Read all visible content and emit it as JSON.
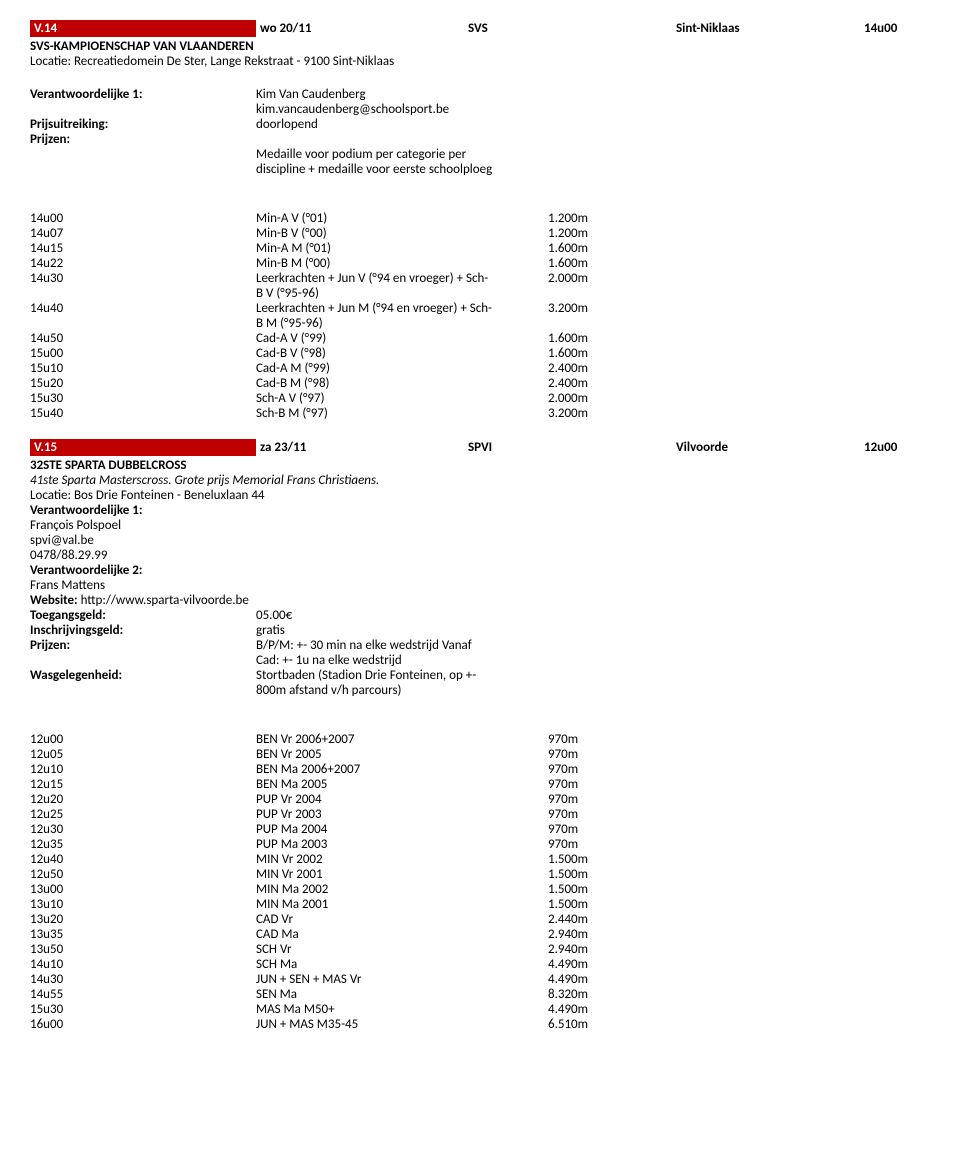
{
  "event1": {
    "header": {
      "code": "V.14",
      "date": "wo 20/11",
      "club": "SVS",
      "location": "Sint-Niklaas",
      "start_time": "14u00"
    },
    "title": "SVS-KAMPIOENSCHAP VAN VLAANDEREN",
    "locatie": "Locatie: Recreatiedomein De Ster, Lange Rekstraat - 9100 Sint-Niklaas",
    "resp1_label": "Verantwoordelijke 1:",
    "resp1_name": "Kim Van Caudenberg",
    "resp1_email": "kim.vancaudenberg@schoolsport.be",
    "prijsuit_label": "Prijsuitreiking:",
    "prijsuit_val": "doorlopend",
    "prijzen_label": "Prijzen:",
    "prijzen_line1": "Medaille voor podium per categorie per",
    "prijzen_line2": "discipline + medaille voor eerste schoolploeg",
    "schedule": [
      {
        "t": "14u00",
        "c": "Min-A V (°01)",
        "d": "1.200m"
      },
      {
        "t": "14u07",
        "c": "Min-B V (°00)",
        "d": "1.200m"
      },
      {
        "t": "14u15",
        "c": "Min-A M (°01)",
        "d": "1.600m"
      },
      {
        "t": "14u22",
        "c": "Min-B M (°00)",
        "d": "1.600m"
      },
      {
        "t": "14u30",
        "c": "Leerkrachten + Jun V (°94 en vroeger) + Sch-",
        "d": "2.000m"
      },
      {
        "t": "",
        "c": "B V (°95-96)",
        "d": ""
      },
      {
        "t": "14u40",
        "c": "Leerkrachten + Jun M (°94 en vroeger) + Sch-",
        "d": "3.200m"
      },
      {
        "t": "",
        "c": "B M (°95-96)",
        "d": ""
      },
      {
        "t": "14u50",
        "c": "Cad-A V (°99)",
        "d": "1.600m"
      },
      {
        "t": "15u00",
        "c": "Cad-B V (°98)",
        "d": "1.600m"
      },
      {
        "t": "15u10",
        "c": "Cad-A M (°99)",
        "d": "2.400m"
      },
      {
        "t": "15u20",
        "c": "Cad-B M (°98)",
        "d": "2.400m"
      },
      {
        "t": "15u30",
        "c": "Sch-A V (°97)",
        "d": "2.000m"
      },
      {
        "t": "15u40",
        "c": "Sch-B M (°97)",
        "d": "3.200m"
      }
    ]
  },
  "event2": {
    "header": {
      "code": "V.15",
      "date": "za 23/11",
      "club": "SPVI",
      "location": "Vilvoorde",
      "start_time": "12u00"
    },
    "title": "32STE SPARTA DUBBELCROSS",
    "subtitle": "41ste Sparta Masterscross. Grote prijs Memorial Frans Christiaens.",
    "locatie": "Locatie: Bos Drie Fonteinen - Beneluxlaan 44",
    "resp1_label": "Verantwoordelijke 1:",
    "resp1_name": "François Polspoel",
    "resp1_email": "spvi@val.be",
    "resp1_phone": "0478/88.29.99",
    "resp2_label": "Verantwoordelijke 2:",
    "resp2_name": "Frans Mattens",
    "website_label": "Website: ",
    "website_url": "http://www.sparta-vilvoorde.be",
    "toegang_label": "Toegangsgeld:",
    "toegang_val": "05.00€",
    "inschrijving_label": "Inschrijvingsgeld:",
    "inschrijving_val": "gratis",
    "prijzen_label": "Prijzen:",
    "prijzen_line1": "B/P/M: +- 30 min na elke wedstrijd Vanaf",
    "prijzen_line2": "Cad: +- 1u na elke wedstrijd",
    "wasg_label": "Wasgelegenheid:",
    "wasg_line1": "Stortbaden (Stadion Drie Fonteinen, op +-",
    "wasg_line2": "800m afstand v/h parcours)",
    "schedule": [
      {
        "t": "12u00",
        "c": "BEN Vr 2006+2007",
        "d": "970m"
      },
      {
        "t": "12u05",
        "c": "BEN Vr 2005",
        "d": "970m"
      },
      {
        "t": "12u10",
        "c": "BEN Ma 2006+2007",
        "d": "970m"
      },
      {
        "t": "12u15",
        "c": "BEN Ma 2005",
        "d": "970m"
      },
      {
        "t": "12u20",
        "c": "PUP Vr 2004",
        "d": "970m"
      },
      {
        "t": "12u25",
        "c": "PUP Vr 2003",
        "d": "970m"
      },
      {
        "t": "12u30",
        "c": "PUP Ma 2004",
        "d": "970m"
      },
      {
        "t": "12u35",
        "c": "PUP Ma 2003",
        "d": "970m"
      },
      {
        "t": "12u40",
        "c": "MIN Vr 2002",
        "d": "1.500m"
      },
      {
        "t": "12u50",
        "c": "MIN Vr 2001",
        "d": "1.500m"
      },
      {
        "t": "13u00",
        "c": "MIN Ma 2002",
        "d": "1.500m"
      },
      {
        "t": "13u10",
        "c": "MIN Ma 2001",
        "d": "1.500m"
      },
      {
        "t": "13u20",
        "c": "CAD Vr",
        "d": "2.440m"
      },
      {
        "t": "13u35",
        "c": "CAD Ma",
        "d": "2.940m"
      },
      {
        "t": "13u50",
        "c": "SCH Vr",
        "d": "2.940m"
      },
      {
        "t": "14u10",
        "c": "SCH Ma",
        "d": "4.490m"
      },
      {
        "t": "14u30",
        "c": "JUN + SEN + MAS Vr",
        "d": "4.490m"
      },
      {
        "t": "14u55",
        "c": "SEN Ma",
        "d": "8.320m"
      },
      {
        "t": "15u30",
        "c": "MAS Ma M50+",
        "d": "4.490m"
      },
      {
        "t": "16u00",
        "c": "JUN + MAS M35-45",
        "d": "6.510m"
      }
    ]
  }
}
